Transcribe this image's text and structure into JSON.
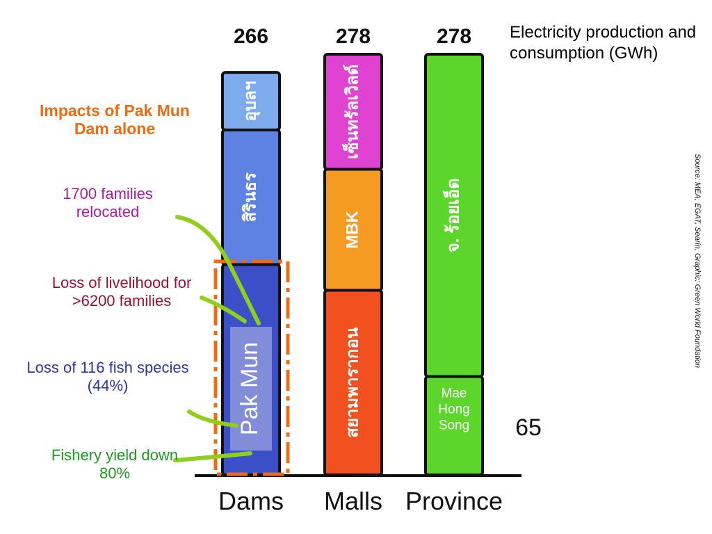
{
  "chart_data": {
    "type": "stacked-bar",
    "title": "Electricity production and consumption (GWh)",
    "subtitle": "Impacts of Pak Mun Dam alone",
    "source": "Source: MEA, EGAT, Searin, Graphic: Green World Foundation",
    "categories": [
      "Dams",
      "Malls",
      "Province"
    ],
    "totals": [
      266,
      278,
      278
    ],
    "stacks": [
      {
        "segments": [
          {
            "label": "Pak Mun",
            "color": "#3b4fc9",
            "value": 139
          },
          {
            "label": "สิรินธร",
            "color": "#5d82e3",
            "value": 89
          },
          {
            "label": "อุบลฯ",
            "color": "#7eaaee",
            "value": 38
          }
        ]
      },
      {
        "segments": [
          {
            "label": "สยามพารากอน",
            "color": "#f2501f",
            "value": 122
          },
          {
            "label": "MBK",
            "color": "#f59b22",
            "value": 80
          },
          {
            "label": "เซ็นทรัลเวิลด์",
            "color": "#e043d2",
            "value": 76
          }
        ]
      },
      {
        "segments": [
          {
            "label": "Mae Hong Song",
            "color": "#5dd62b",
            "value": 65
          },
          {
            "label": "จ. ร้อยเอ็ด",
            "color": "#5dd62b",
            "value": 213
          }
        ]
      }
    ],
    "annotations": [
      {
        "text": "1700 families relocated",
        "color": "#b0199e"
      },
      {
        "text": "Loss of livelihood for >6200 families",
        "color": "#9b1030"
      },
      {
        "text": "Loss of 116 fish species (44%)",
        "color": "#2b35a8"
      },
      {
        "text": "Fishery yield down 80%",
        "color": "#1e9a1e"
      }
    ]
  }
}
